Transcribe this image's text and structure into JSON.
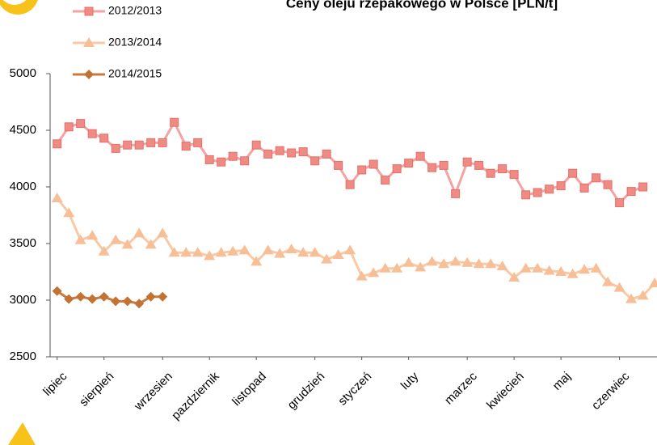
{
  "chart_data": {
    "type": "line",
    "title": "Ceny oleju rzepakowego w Polsce [PLN/t]",
    "xlim": [
      -0.6,
      51.2
    ],
    "xticks": [
      {
        "value": 0,
        "label": "lipiec"
      },
      {
        "value": 4,
        "label": "sierpień"
      },
      {
        "value": 9,
        "label": "wrzesien"
      },
      {
        "value": 13,
        "label": "pazdziernik"
      },
      {
        "value": 17,
        "label": "listopad"
      },
      {
        "value": 22,
        "label": "grudzień"
      },
      {
        "value": 26,
        "label": "styczeń"
      },
      {
        "value": 30,
        "label": "luty"
      },
      {
        "value": 35,
        "label": "marzec"
      },
      {
        "value": 39,
        "label": "kwiecień"
      },
      {
        "value": 43,
        "label": "maj"
      },
      {
        "value": 48,
        "label": "czerwiec"
      }
    ],
    "ylim": [
      2500,
      5000
    ],
    "yticks": [
      2500,
      3000,
      3500,
      4000,
      4500,
      5000
    ],
    "grid": false,
    "legend": "top-left",
    "series": [
      {
        "name": "2012/2013",
        "color": "#f4a3a3",
        "marker": "square",
        "marker_color": "#f08a84",
        "x": [
          0,
          1,
          2,
          3,
          4,
          5,
          6,
          7,
          8,
          9,
          10,
          11,
          12,
          13,
          14,
          15,
          16,
          17,
          18,
          19,
          20,
          21,
          22,
          23,
          24,
          25,
          26,
          27,
          28,
          29,
          30,
          31,
          32,
          33,
          34,
          35,
          36,
          37,
          38,
          39,
          40,
          41,
          42,
          43,
          44,
          45,
          46,
          47,
          48,
          49,
          50
        ],
        "values": [
          4380,
          4530,
          4560,
          4470,
          4430,
          4340,
          4370,
          4370,
          4390,
          4390,
          4570,
          4360,
          4390,
          4240,
          4220,
          4270,
          4230,
          4370,
          4290,
          4320,
          4300,
          4310,
          4230,
          4290,
          4190,
          4020,
          4150,
          4200,
          4060,
          4160,
          4210,
          4270,
          4170,
          4190,
          3940,
          4220,
          4190,
          4120,
          4160,
          4110,
          3930,
          3950,
          3980,
          4010,
          4120,
          3990,
          4080,
          4020,
          3860,
          3960,
          4000
        ]
      },
      {
        "name": "2013/2014",
        "color": "#f9c9a4",
        "marker": "triangle",
        "marker_color": "#f7bf98",
        "x": [
          0,
          1,
          2,
          3,
          4,
          5,
          6,
          7,
          8,
          9,
          10,
          11,
          12,
          13,
          14,
          15,
          16,
          17,
          18,
          19,
          20,
          21,
          22,
          23,
          24,
          25,
          26,
          27,
          28,
          29,
          30,
          31,
          32,
          33,
          34,
          35,
          36,
          37,
          38,
          39,
          40,
          41,
          42,
          43,
          44,
          45,
          46,
          47,
          48,
          49,
          50,
          51
        ],
        "values": [
          3900,
          3770,
          3530,
          3570,
          3430,
          3530,
          3490,
          3590,
          3490,
          3590,
          3420,
          3420,
          3420,
          3390,
          3420,
          3430,
          3440,
          3340,
          3440,
          3410,
          3450,
          3420,
          3420,
          3360,
          3400,
          3440,
          3210,
          3240,
          3280,
          3280,
          3330,
          3290,
          3340,
          3320,
          3340,
          3330,
          3320,
          3320,
          3300,
          3200,
          3280,
          3280,
          3260,
          3250,
          3230,
          3270,
          3280,
          3160,
          3110,
          3010,
          3040,
          3150
        ]
      },
      {
        "name": "2014/2015",
        "color": "#c97b3d",
        "marker": "diamond",
        "marker_color": "#c27233",
        "x": [
          0,
          1,
          2,
          3,
          4,
          5,
          6,
          7,
          8,
          9
        ],
        "values": [
          3080,
          3010,
          3030,
          3010,
          3030,
          2990,
          2990,
          2970,
          3030,
          3030
        ]
      }
    ]
  }
}
